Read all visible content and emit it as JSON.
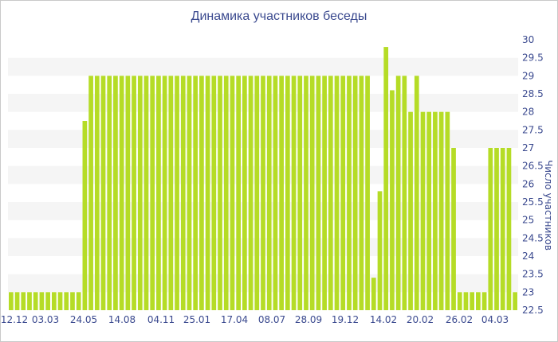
{
  "chart_data": {
    "type": "bar",
    "title": "Динамика участников беседы",
    "ylabel": "Число участников",
    "xlabel": "",
    "ylim": [
      22.5,
      30
    ],
    "yticks": [
      "22.5",
      "23",
      "23.5",
      "24",
      "24.5",
      "25",
      "25.5",
      "26",
      "26.5",
      "27",
      "27.5",
      "28",
      "28.5",
      "29",
      "29.5",
      "30"
    ],
    "xtick_labels": [
      "12.12",
      "03.03",
      "24.05",
      "14.08",
      "04.11",
      "25.01",
      "17.04",
      "08.07",
      "28.09",
      "19.12",
      "14.02",
      "20.02",
      "26.02",
      "04.03"
    ],
    "values": [
      23,
      23,
      23,
      23,
      23,
      23,
      23,
      23,
      23,
      23,
      23,
      23,
      27.75,
      29,
      29,
      29,
      29,
      29,
      29,
      29,
      29,
      29,
      29,
      29,
      29,
      29,
      29,
      29,
      29,
      29,
      29,
      29,
      29,
      29,
      29,
      29,
      29,
      29,
      29,
      29,
      29,
      29,
      29,
      29,
      29,
      29,
      29,
      29,
      29,
      29,
      29,
      29,
      29,
      29,
      29,
      29,
      29,
      29,
      29,
      23.4,
      25.8,
      29.8,
      28.6,
      29,
      29,
      28,
      29,
      28,
      28,
      28,
      28,
      28,
      27,
      23,
      23,
      23,
      23,
      23,
      27,
      27,
      27,
      27,
      23
    ],
    "bar_color": "#b5dc26",
    "band_color": "#f5f5f5",
    "text_color": "#3b4a8f",
    "grid": false,
    "legend": "none"
  }
}
